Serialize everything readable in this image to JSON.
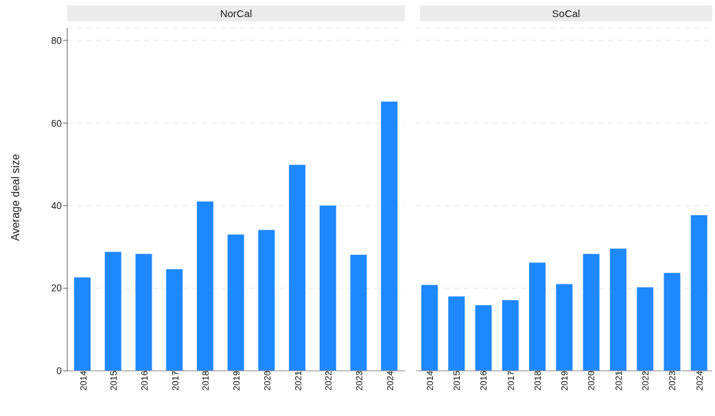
{
  "chart_data": [
    {
      "type": "bar",
      "title": "NorCal",
      "ylabel": "Average deal size",
      "categories": [
        "2014",
        "2015",
        "2016",
        "2017",
        "2018",
        "2019",
        "2020",
        "2021",
        "2022",
        "2023",
        "2024"
      ],
      "values": [
        22.6,
        28.8,
        28.3,
        24.6,
        41.0,
        33.0,
        34.1,
        49.9,
        40.0,
        28.1,
        65.2
      ],
      "color": "#1e88ff",
      "ylim": [
        0,
        83
      ],
      "yticks": [
        0,
        20,
        40,
        60,
        80
      ],
      "grid": "y"
    },
    {
      "type": "bar",
      "title": "SoCal",
      "categories": [
        "2014",
        "2015",
        "2016",
        "2017",
        "2018",
        "2019",
        "2020",
        "2021",
        "2022",
        "2023",
        "2024"
      ],
      "values": [
        20.8,
        18.0,
        15.9,
        17.1,
        26.2,
        21.0,
        28.3,
        29.6,
        20.2,
        23.7,
        37.7
      ],
      "color": "#1e88ff",
      "ylim": [
        0,
        83
      ],
      "yticks": [
        0,
        20,
        40,
        60,
        80
      ],
      "grid": "y",
      "tick_labels": "x"
    }
  ]
}
